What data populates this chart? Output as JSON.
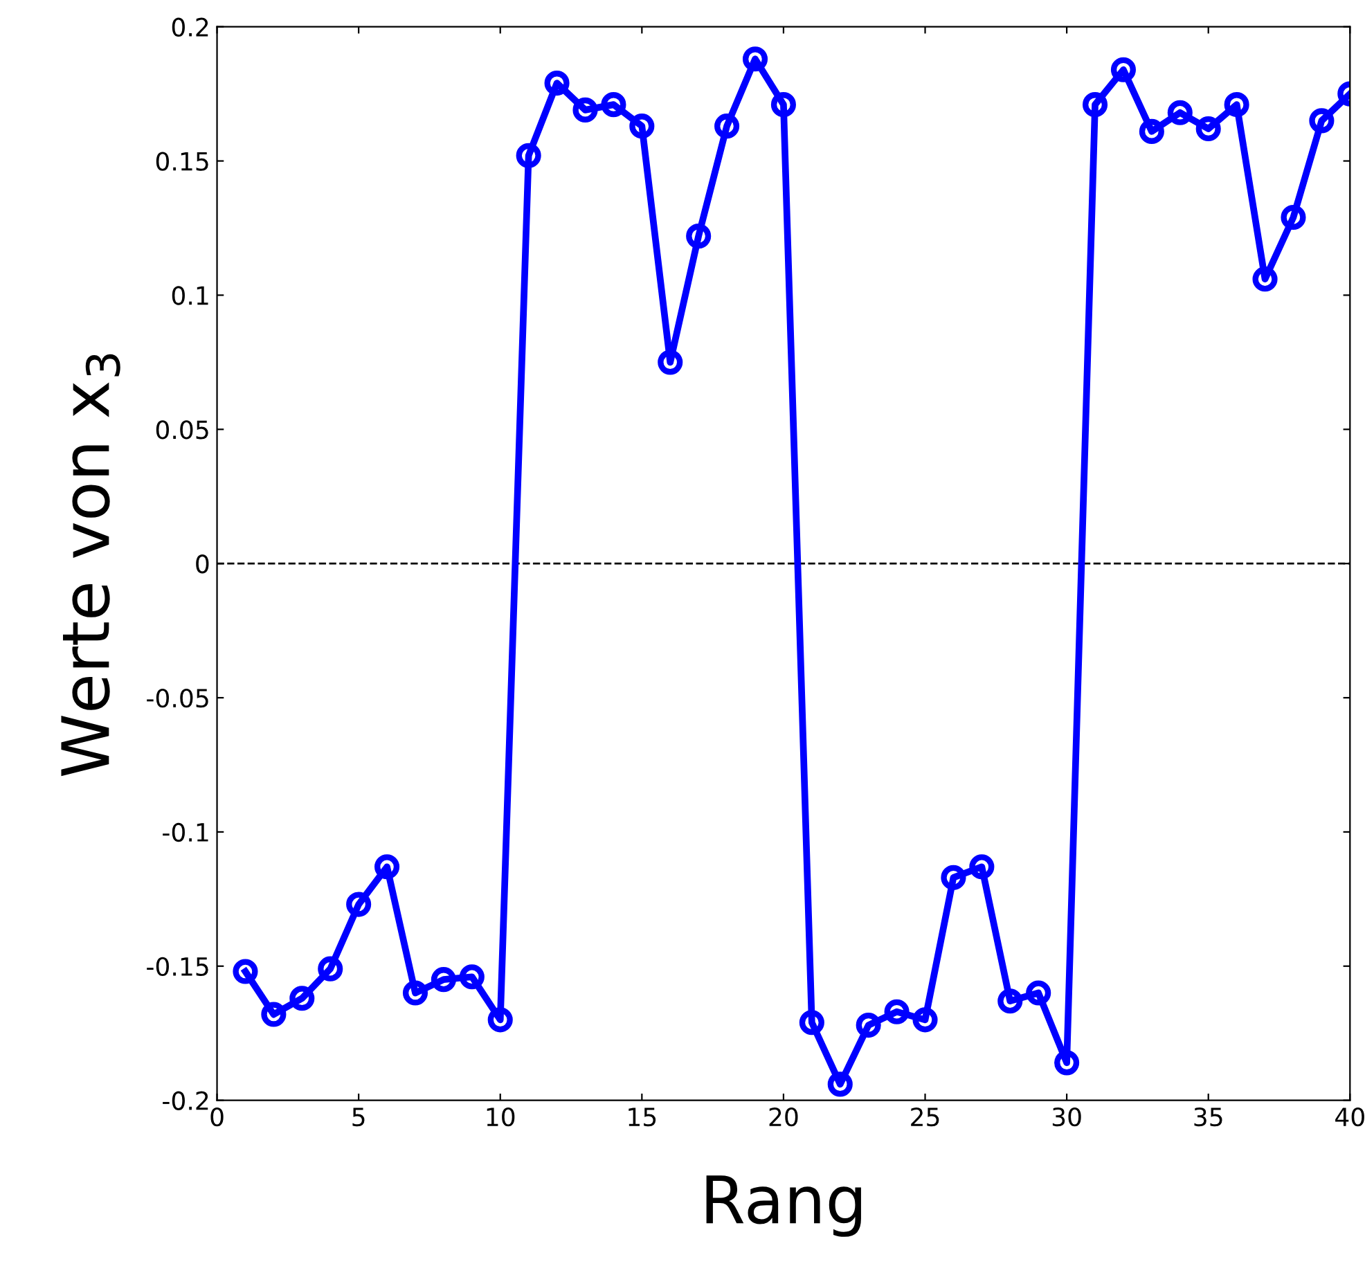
{
  "chart_data": {
    "type": "line",
    "xlabel": "Rang",
    "ylabel": "Werte von x$_{3}$",
    "x": [
      1,
      2,
      3,
      4,
      5,
      6,
      7,
      8,
      9,
      10,
      11,
      12,
      13,
      14,
      15,
      16,
      17,
      18,
      19,
      20,
      21,
      22,
      23,
      24,
      25,
      26,
      27,
      28,
      29,
      30,
      31,
      32,
      33,
      34,
      35,
      36,
      37,
      38,
      39,
      40
    ],
    "series": [
      {
        "color": "#0000ff",
        "values": [
          -0.152,
          -0.168,
          -0.162,
          -0.151,
          -0.127,
          -0.113,
          -0.16,
          -0.155,
          -0.154,
          -0.17,
          0.152,
          0.179,
          0.169,
          0.171,
          0.163,
          0.075,
          0.122,
          0.163,
          0.188,
          0.171,
          -0.171,
          -0.194,
          -0.172,
          -0.167,
          -0.17,
          -0.117,
          -0.113,
          -0.163,
          -0.16,
          -0.186,
          0.171,
          0.184,
          0.161,
          0.168,
          0.162,
          0.171,
          0.106,
          0.129,
          0.165,
          0.175
        ]
      }
    ],
    "xlim": [
      0,
      40
    ],
    "xticks": [
      0,
      5,
      10,
      15,
      20,
      25,
      30,
      35,
      40
    ],
    "ylim": [
      -0.2,
      0.2
    ],
    "yticks": [
      {
        "value": -0.2,
        "label": "-0.2"
      },
      {
        "value": -0.15,
        "label": "-0.15"
      },
      {
        "value": -0.1,
        "label": "-0.1"
      },
      {
        "value": -0.05,
        "label": "-0.05"
      },
      0,
      0.05,
      0.1,
      0.15,
      0.2
    ],
    "ref_lines": [
      {
        "axis": "y",
        "value": 0,
        "color": "#000000",
        "line_style": "dashed"
      }
    ],
    "marker": "circle",
    "line_style": "solid",
    "grid": false,
    "legend": false
  }
}
